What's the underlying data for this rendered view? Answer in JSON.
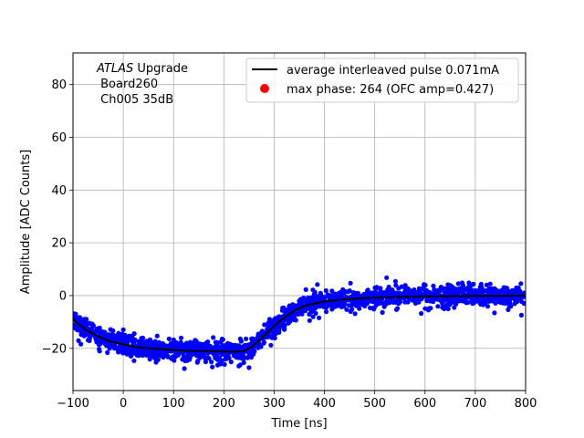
{
  "chart_data": {
    "type": "scatter",
    "title": "",
    "xlabel": "Time [ns]",
    "ylabel": "Amplitude [ADC Counts]",
    "xlim": [
      -100,
      800
    ],
    "ylim": [
      -36,
      92
    ],
    "xticks": [
      -100,
      0,
      100,
      200,
      300,
      400,
      500,
      600,
      700,
      800
    ],
    "yticks": [
      -20,
      0,
      20,
      40,
      60,
      80
    ],
    "grid": true,
    "legend_position": "top-right",
    "annotation": {
      "line1_italic": "ATLAS",
      "line1_rest": " Upgrade",
      "line2": " Board260",
      "line3": " Ch005 35dB"
    },
    "series": [
      {
        "name": "average interleaved pulse 0.071mA",
        "kind": "line",
        "color": "#000000",
        "x": [
          -100,
          -75,
          -50,
          -25,
          0,
          25,
          50,
          75,
          100,
          125,
          150,
          175,
          200,
          225,
          240,
          255,
          270,
          285,
          300,
          315,
          330,
          345,
          360,
          375,
          390,
          410,
          430,
          450,
          475,
          500,
          550,
          600,
          650,
          700,
          750,
          800
        ],
        "y": [
          -9,
          -13,
          -15.5,
          -17.5,
          -18.5,
          -19.5,
          -20,
          -20.3,
          -20.6,
          -20.9,
          -21,
          -21.1,
          -21.2,
          -21.3,
          -21,
          -19.5,
          -17,
          -14.2,
          -11.5,
          -9,
          -7,
          -5.3,
          -4,
          -3.2,
          -2.6,
          -2,
          -1.6,
          -1.3,
          -1,
          -0.8,
          -0.5,
          -0.3,
          -0.2,
          -0.1,
          -0.1,
          0
        ]
      },
      {
        "name": "max phase: 264 (OFC amp=0.427)",
        "kind": "marker",
        "color": "#ff0000"
      },
      {
        "name": "samples",
        "kind": "scatter",
        "color": "#0000ff",
        "noise": {
          "core_spread": 4,
          "outlier_spread": 7,
          "count": 1800,
          "x_range": [
            -100,
            800
          ]
        }
      }
    ]
  }
}
